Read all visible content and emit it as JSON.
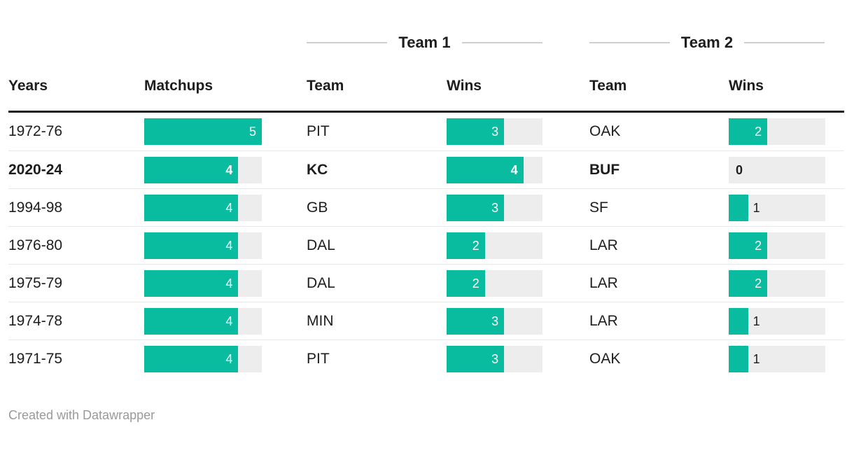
{
  "chart_data": {
    "type": "table",
    "group_headers": [
      "Team 1",
      "Team 2"
    ],
    "columns": [
      "Years",
      "Matchups",
      "Team",
      "Wins",
      "Team",
      "Wins"
    ],
    "bar_max": 5,
    "rows": [
      {
        "years": "1972-76",
        "matchups": 5,
        "team1": "PIT",
        "team1_wins": 3,
        "team2": "OAK",
        "team2_wins": 2,
        "bold": false
      },
      {
        "years": "2020-24",
        "matchups": 4,
        "team1": "KC",
        "team1_wins": 4,
        "team2": "BUF",
        "team2_wins": 0,
        "bold": true
      },
      {
        "years": "1994-98",
        "matchups": 4,
        "team1": "GB",
        "team1_wins": 3,
        "team2": "SF",
        "team2_wins": 1,
        "bold": false
      },
      {
        "years": "1976-80",
        "matchups": 4,
        "team1": "DAL",
        "team1_wins": 2,
        "team2": "LAR",
        "team2_wins": 2,
        "bold": false
      },
      {
        "years": "1975-79",
        "matchups": 4,
        "team1": "DAL",
        "team1_wins": 2,
        "team2": "LAR",
        "team2_wins": 2,
        "bold": false
      },
      {
        "years": "1974-78",
        "matchups": 4,
        "team1": "MIN",
        "team1_wins": 3,
        "team2": "LAR",
        "team2_wins": 1,
        "bold": false
      },
      {
        "years": "1971-75",
        "matchups": 4,
        "team1": "PIT",
        "team1_wins": 3,
        "team2": "OAK",
        "team2_wins": 1,
        "bold": false
      }
    ]
  },
  "colors": {
    "bar_fill": "#09bb9f",
    "bar_bg": "#ededed",
    "header_rule": "#1d1d1d",
    "row_separator": "#e8e8e8",
    "group_line": "#cfcfcf",
    "footer_text": "#999999"
  },
  "footer": {
    "credit": "Created with Datawrapper"
  }
}
